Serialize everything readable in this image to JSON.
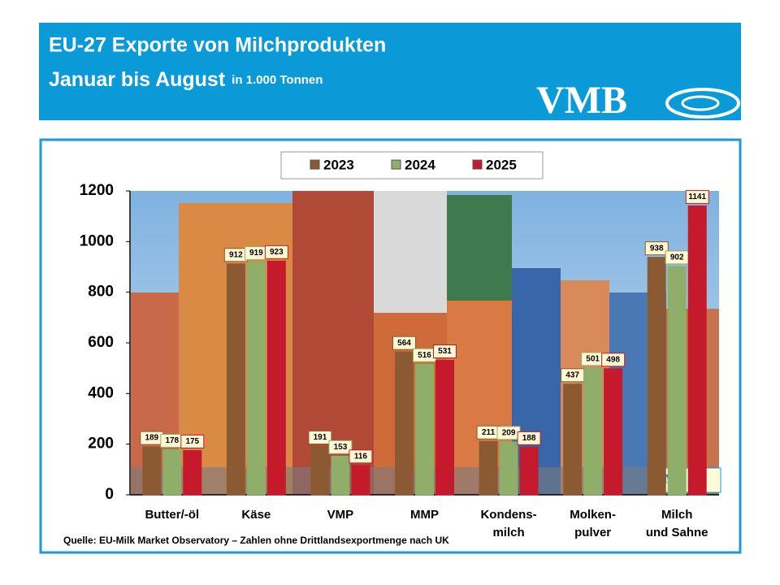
{
  "chart_data": {
    "type": "bar",
    "title": "EU-27 Exporte von Milchprodukten",
    "subtitle": "Januar bis August",
    "unit": "in 1.000 Tonnen",
    "logo": "VMB",
    "source": "Quelle: EU-Milk Market Observatory – Zahlen ohne Drittlandsexportmenge nach UK",
    "categories": [
      "Butter/-öl",
      "Käse",
      "VMP",
      "MMP",
      "Kondens-\nmilch",
      "Molken-\npulver",
      "Milch\nund Sahne"
    ],
    "series": [
      {
        "name": "2023",
        "color": "#8b5a32",
        "values": [
          189,
          912,
          191,
          564,
          211,
          437,
          938
        ]
      },
      {
        "name": "2024",
        "color": "#8fae6a",
        "values": [
          178,
          919,
          153,
          516,
          209,
          501,
          902
        ]
      },
      {
        "name": "2025",
        "color": "#c41a2c",
        "values": [
          175,
          923,
          116,
          531,
          188,
          498,
          1141
        ]
      }
    ],
    "ylim": [
      0,
      1200
    ],
    "yticks": [
      0,
      200,
      400,
      600,
      800,
      1000,
      1200
    ],
    "grid": false
  }
}
